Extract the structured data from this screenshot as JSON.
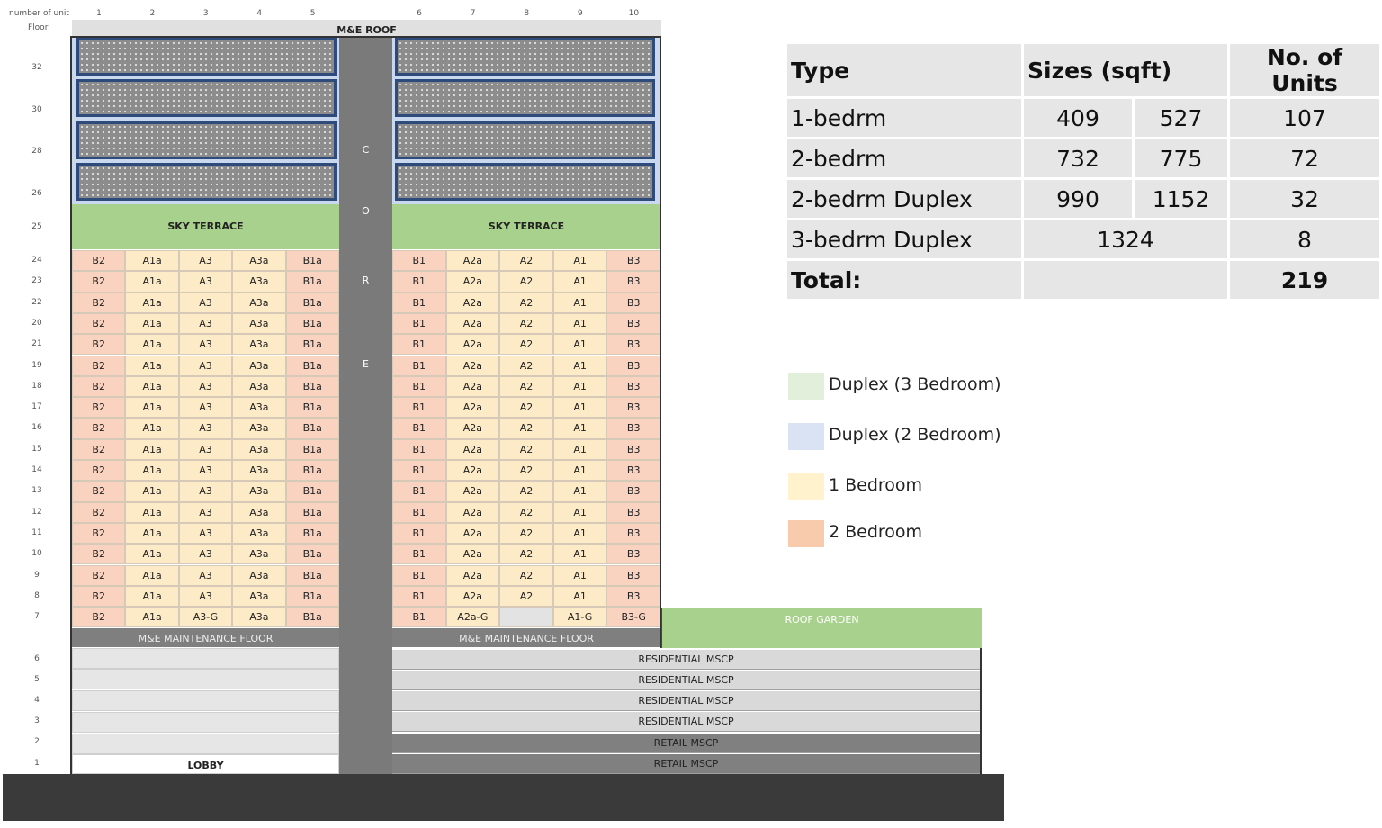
{
  "header": {
    "unit_label": "number of unit",
    "floor_label": "Floor",
    "units_left": [
      "1",
      "2",
      "3",
      "4",
      "5"
    ],
    "units_right": [
      "6",
      "7",
      "8",
      "9",
      "10"
    ],
    "roof_label": "M&E ROOF"
  },
  "floors": {
    "duplex": [
      "32",
      "30",
      "28",
      "26"
    ],
    "sky_terrace": "25",
    "residential": [
      "24",
      "23",
      "22",
      "20",
      "21",
      "19",
      "18",
      "17",
      "16",
      "15",
      "14",
      "13",
      "12",
      "11",
      "10",
      "9",
      "8",
      "7"
    ],
    "lower": [
      "6",
      "5",
      "4",
      "3",
      "2",
      "1"
    ]
  },
  "core_letters": [
    "C",
    "O",
    "R",
    "E"
  ],
  "sky_terrace_label": "SKY TERRACE",
  "maintenance_label": "M&E MAINTENANCE FLOOR",
  "roof_garden_label": "ROOF GARDEN",
  "lobby_label": "LOBBY",
  "mscp": [
    "RESIDENTIAL MSCP",
    "RESIDENTIAL MSCP",
    "RESIDENTIAL MSCP",
    "RESIDENTIAL MSCP",
    "RETAIL MSCP",
    "RETAIL MSCP"
  ],
  "unit_row": [
    "B2",
    "A1a",
    "A3",
    "A3a",
    "B1a",
    "B1",
    "A2a",
    "A2",
    "A1",
    "B3"
  ],
  "unit_row_7": [
    "B2",
    "A1a",
    "A3-G",
    "A3a",
    "B1a",
    "B1",
    "A2a-G",
    "",
    "A1-G",
    "B3-G"
  ],
  "unit_types": [
    "2br",
    "1br",
    "1br",
    "1br",
    "2br",
    "2br",
    "1br",
    "1br",
    "1br",
    "2br"
  ],
  "colors": {
    "one_bedroom": "#fdeac6",
    "two_bedroom": "#f9d3c0",
    "duplex_3br": "#a9d18e",
    "duplex_2br": "#c9d8ef",
    "core": "#7a7a7a",
    "maintenance": "#7f7f7f",
    "mscp_residential": "#d9d9d9",
    "mscp_retail": "#808080",
    "ground": "#3a3a3a"
  },
  "summary_table": {
    "headers": {
      "type": "Type",
      "sizes": "Sizes (sqft)",
      "units": "No. of Units"
    },
    "rows": [
      {
        "type": "1-bedrm",
        "size1": "409",
        "size2": "527",
        "units": "107"
      },
      {
        "type": "2-bedrm",
        "size1": "732",
        "size2": "775",
        "units": "72"
      },
      {
        "type": "2-bedrm Duplex",
        "size1": "990",
        "size2": "1152",
        "units": "32"
      },
      {
        "type": "3-bedrm Duplex",
        "size_merged": "1324",
        "units": "8"
      }
    ],
    "total_label": "Total:",
    "total_value": "219"
  },
  "legend": [
    {
      "label": "Duplex (3 Bedroom)",
      "color": "#e2efda"
    },
    {
      "label": "Duplex (2 Bedroom)",
      "color": "#dae3f3"
    },
    {
      "label": "1 Bedroom",
      "color": "#fff2cc"
    },
    {
      "label": "2 Bedroom",
      "color": "#f8cbad"
    }
  ]
}
